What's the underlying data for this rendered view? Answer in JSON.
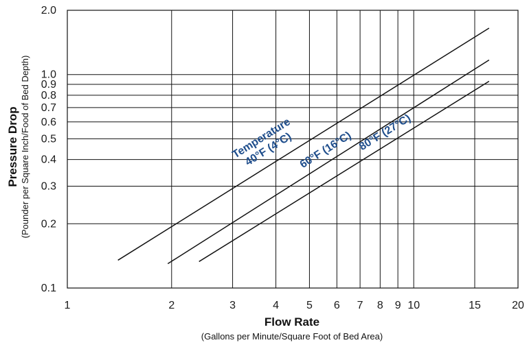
{
  "chart_data": {
    "type": "line",
    "x_scale": "log",
    "y_scale": "log",
    "xlim": [
      1,
      20
    ],
    "ylim": [
      0.1,
      2.0
    ],
    "x_ticks": [
      {
        "value": 1,
        "label": "1"
      },
      {
        "value": 2,
        "label": "2"
      },
      {
        "value": 3,
        "label": "3"
      },
      {
        "value": 4,
        "label": "4"
      },
      {
        "value": 5,
        "label": "5"
      },
      {
        "value": 6,
        "label": "6"
      },
      {
        "value": 7,
        "label": "7"
      },
      {
        "value": 8,
        "label": "8"
      },
      {
        "value": 9,
        "label": "9"
      },
      {
        "value": 10,
        "label": "10"
      },
      {
        "value": 15,
        "label": "15"
      },
      {
        "value": 20,
        "label": "20"
      }
    ],
    "y_ticks": [
      {
        "value": 0.1,
        "label": "0.1"
      },
      {
        "value": 0.2,
        "label": "0.2"
      },
      {
        "value": 0.3,
        "label": "0.3"
      },
      {
        "value": 0.4,
        "label": "0.4"
      },
      {
        "value": 0.5,
        "label": "0.5"
      },
      {
        "value": 0.6,
        "label": "0.6"
      },
      {
        "value": 0.7,
        "label": "0.7"
      },
      {
        "value": 0.8,
        "label": "0.8"
      },
      {
        "value": 0.9,
        "label": "0.9"
      },
      {
        "value": 1.0,
        "label": "1.0"
      },
      {
        "value": 2.0,
        "label": "2.0"
      }
    ],
    "xlabel": "Flow Rate",
    "xlabel_sub": "(Gallons per Minute/Square Foot of Bed Area)",
    "ylabel": "Pressure Drop",
    "ylabel_sub": "(Pounder per Square Inch/Food of Bed Depth)",
    "grid": true,
    "line_color": "#111111",
    "label_color": "#1f4e8c",
    "series": [
      {
        "name": "40°F (4°C)",
        "x": [
          1.4,
          16.5
        ],
        "y": [
          0.135,
          1.65
        ]
      },
      {
        "name": "60°F (16°C)",
        "x": [
          1.95,
          16.5
        ],
        "y": [
          0.13,
          1.17
        ]
      },
      {
        "name": "80°F (27°C)",
        "x": [
          2.4,
          16.5
        ],
        "y": [
          0.133,
          0.93
        ]
      }
    ],
    "annotations": [
      {
        "text": "Temperature",
        "series_index": 0
      }
    ]
  }
}
